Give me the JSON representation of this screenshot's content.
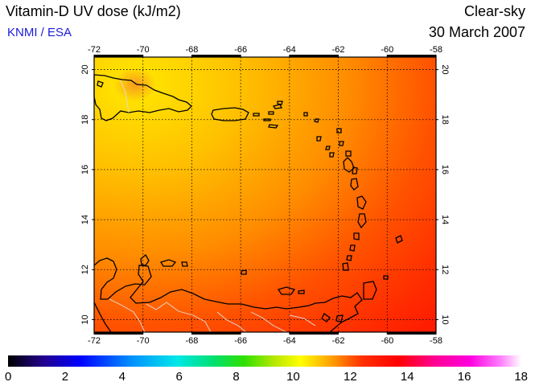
{
  "header": {
    "title": "Vitamin-D UV dose (kJ/m2)",
    "credit": "KNMI / ESA",
    "sky_condition": "Clear-sky",
    "date": "30 March 2007"
  },
  "map": {
    "lon_range": [
      -72,
      -58
    ],
    "lat_range": [
      9.5,
      20.5
    ],
    "lon_ticks": [
      "-72",
      "-70",
      "-68",
      "-66",
      "-64",
      "-62",
      "-60",
      "-58"
    ],
    "lat_ticks": [
      "10",
      "12",
      "14",
      "16",
      "18",
      "20"
    ],
    "dose_field": {
      "northwest_max": 10.5,
      "north": 11.0,
      "central": 12.0,
      "southeast_min": 13.2
    }
  },
  "colorbar": {
    "min": 0,
    "max": 18,
    "labels": [
      "0",
      "2",
      "4",
      "6",
      "8",
      "10",
      "12",
      "14",
      "16",
      "18"
    ],
    "colors": [
      "#000000",
      "#22008f",
      "#0000ff",
      "#0090ff",
      "#00e8e8",
      "#00e070",
      "#30e000",
      "#b8e800",
      "#ffff00",
      "#ffa000",
      "#ff3000",
      "#ff0000",
      "#ff0090",
      "#ff00e0",
      "#ff80ff",
      "#ffffff"
    ]
  }
}
